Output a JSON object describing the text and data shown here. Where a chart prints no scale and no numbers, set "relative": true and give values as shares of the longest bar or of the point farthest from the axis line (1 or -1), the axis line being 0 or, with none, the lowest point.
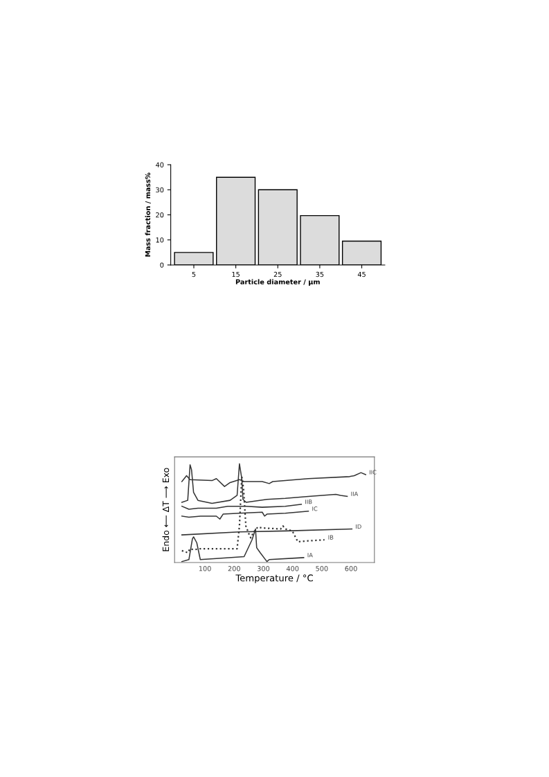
{
  "chart_data": [
    {
      "type": "bar",
      "xlabel": "Particle diameter / μm",
      "ylabel": "Mass fraction / mass%",
      "categories": [
        "5",
        "15",
        "25",
        "35",
        "45"
      ],
      "values": [
        5,
        35,
        30,
        19.7,
        9.5
      ],
      "color": "#dcdcdc",
      "ylim": [
        0,
        40
      ],
      "yticks": [
        0,
        10,
        20,
        30,
        40
      ],
      "grid": false,
      "legend": false
    },
    {
      "type": "line",
      "relative": true,
      "xlabel": "Temperature / °C",
      "ylabel": "Endo ⟵ ΔT ⟶ Exo",
      "xlim": [
        -4,
        680
      ],
      "xticks": [
        100,
        200,
        300,
        400,
        500,
        600
      ],
      "grid": false,
      "legend": false,
      "marker": "none",
      "series": [
        {
          "name": "IIC",
          "color": "#333333",
          "line_style": "solid",
          "x": [
            21,
            37,
            49,
            124,
            139,
            167,
            186,
            218,
            234,
            296,
            320,
            332,
            454,
            595,
            611,
            634,
            650
          ],
          "values": [
            0.82,
            0.88,
            0.84,
            0.83,
            0.85,
            0.77,
            0.81,
            0.84,
            0.82,
            0.82,
            0.8,
            0.82,
            0.85,
            0.87,
            0.88,
            0.91,
            0.89
          ]
        },
        {
          "name": "IIA",
          "color": "#333333",
          "line_style": "solid",
          "x": [
            21,
            41,
            49,
            54,
            61,
            76,
            124,
            186,
            210,
            218,
            226,
            230,
            241,
            312,
            375,
            454,
            548,
            564,
            587
          ],
          "values": [
            0.61,
            0.63,
            0.99,
            0.94,
            0.71,
            0.63,
            0.6,
            0.63,
            0.68,
            1.0,
            0.85,
            0.64,
            0.61,
            0.64,
            0.65,
            0.67,
            0.69,
            0.68,
            0.67
          ]
        },
        {
          "name": "IIB",
          "color": "#333333",
          "line_style": "solid",
          "x": [
            21,
            45,
            76,
            139,
            178,
            241,
            296,
            375,
            430
          ],
          "values": [
            0.57,
            0.54,
            0.55,
            0.55,
            0.57,
            0.57,
            0.56,
            0.57,
            0.59
          ]
        },
        {
          "name": "IC",
          "color": "#333333",
          "line_style": "solid",
          "x": [
            21,
            45,
            85,
            139,
            151,
            162,
            218,
            296,
            304,
            312,
            375,
            454
          ],
          "values": [
            0.47,
            0.46,
            0.47,
            0.47,
            0.44,
            0.49,
            0.5,
            0.51,
            0.47,
            0.49,
            0.5,
            0.52
          ]
        },
        {
          "name": "ID",
          "color": "#333333",
          "line_style": "solid",
          "x": [
            21,
            218,
            375,
            603
          ],
          "values": [
            0.28,
            0.31,
            0.32,
            0.34
          ]
        },
        {
          "name": "IB",
          "color": "#333333",
          "line_style": "dotted",
          "x": [
            21,
            41,
            49,
            61,
            84,
            139,
            210,
            218,
            226,
            232,
            240,
            253,
            257,
            265,
            281,
            296,
            359,
            367,
            375,
            399,
            418,
            454,
            509
          ],
          "values": [
            0.12,
            0.1,
            0.14,
            0.13,
            0.14,
            0.14,
            0.14,
            0.37,
            0.87,
            0.75,
            0.37,
            0.27,
            0.25,
            0.3,
            0.36,
            0.35,
            0.34,
            0.37,
            0.34,
            0.32,
            0.21,
            0.22,
            0.23
          ]
        },
        {
          "name": "IA",
          "color": "#333333",
          "line_style": "solid",
          "x": [
            21,
            45,
            57,
            61,
            72,
            84,
            139,
            234,
            261,
            273,
            277,
            289,
            312,
            320,
            438
          ],
          "values": [
            0.01,
            0.03,
            0.24,
            0.26,
            0.2,
            0.03,
            0.04,
            0.06,
            0.23,
            0.34,
            0.15,
            0.1,
            0.01,
            0.03,
            0.05
          ]
        }
      ]
    }
  ]
}
